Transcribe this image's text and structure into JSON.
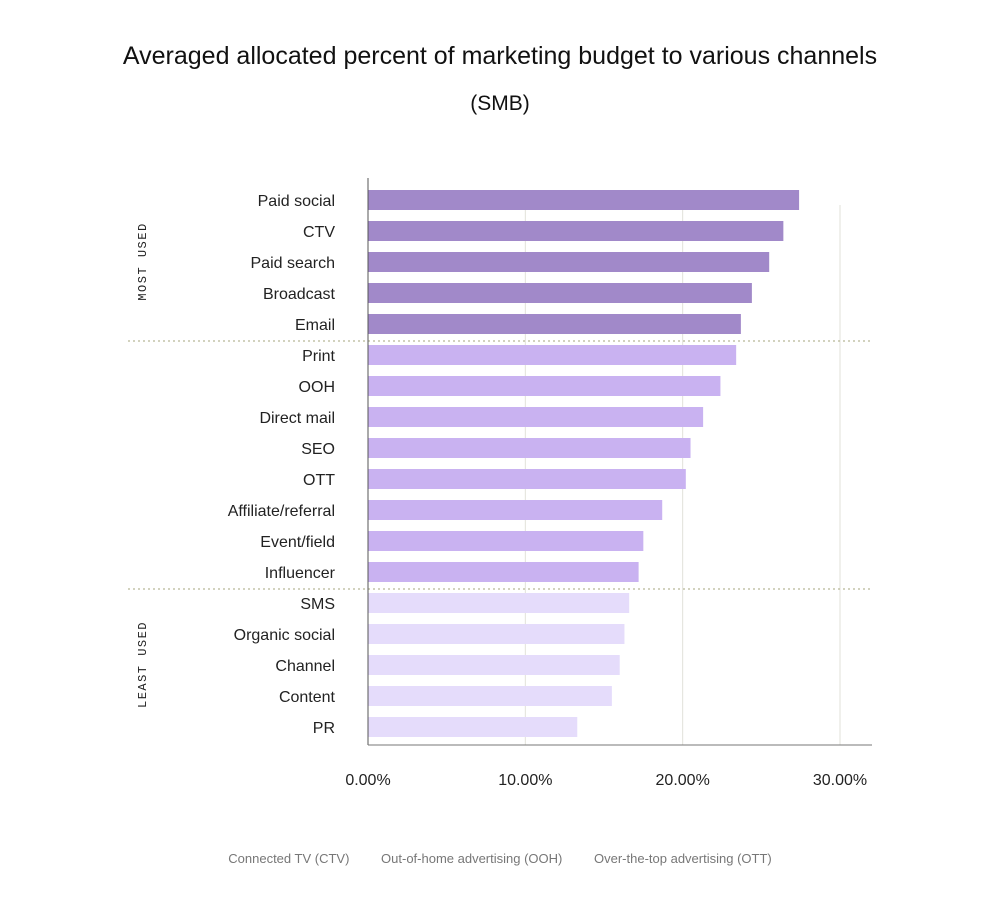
{
  "chart_data": {
    "type": "bar",
    "orientation": "horizontal",
    "title": "Averaged allocated percent of marketing budget to various channels",
    "subtitle": "(SMB)",
    "categories": [
      "Paid social",
      "CTV",
      "Paid search",
      "Broadcast",
      "Email",
      "Print",
      "OOH",
      "Direct mail",
      "SEO",
      "OTT",
      "Affiliate/referral",
      "Event/field",
      "Influencer",
      "SMS",
      "Organic social",
      "Channel",
      "Content",
      "PR"
    ],
    "values": [
      27.4,
      26.4,
      25.5,
      24.4,
      23.7,
      23.4,
      22.4,
      21.3,
      20.5,
      20.2,
      18.7,
      17.5,
      17.2,
      16.6,
      16.3,
      16.0,
      15.5,
      13.3
    ],
    "groups": [
      {
        "label": "MOST USED",
        "count": 5,
        "color": "#a189c9"
      },
      {
        "label": "",
        "count": 8,
        "color": "#c9b2f1"
      },
      {
        "label": "LEAST USED",
        "count": 5,
        "color": "#e5dcfb"
      }
    ],
    "xlim": [
      0,
      30
    ],
    "xticks": [
      0,
      10,
      20,
      30
    ],
    "xtick_labels": [
      "0.00%",
      "10.00%",
      "20.00%",
      "30.00%"
    ],
    "grid": true,
    "xlabel": "",
    "ylabel": ""
  },
  "footnotes": [
    "Connected TV (CTV)",
    "Out-of-home advertising (OOH)",
    "Over-the-top advertising (OTT)"
  ]
}
